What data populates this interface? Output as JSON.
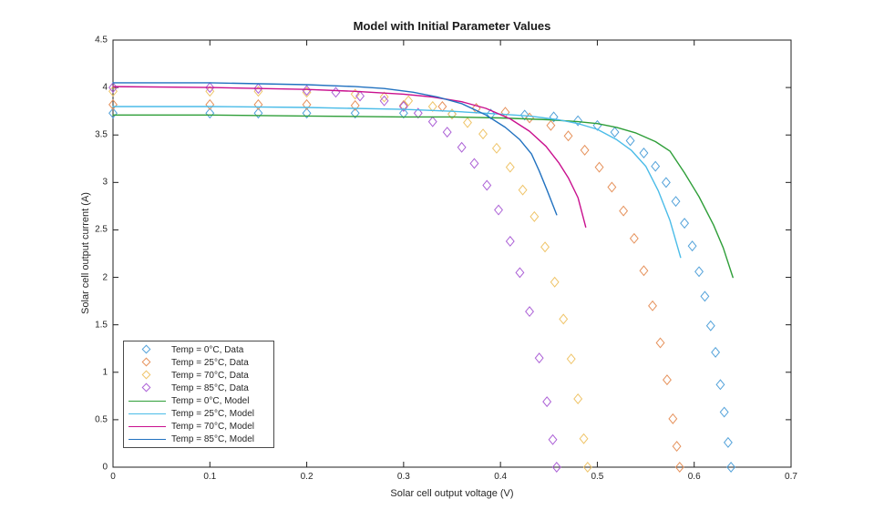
{
  "chart_data": {
    "type": "scatter",
    "title": "Model with Initial Parameter Values",
    "xlabel": "Solar cell output voltage (V)",
    "ylabel": "Solar cell output current (A)",
    "xlim": [
      0,
      0.7
    ],
    "ylim": [
      0,
      4.5
    ],
    "xticks": [
      0,
      0.1,
      0.2,
      0.3,
      0.4,
      0.5,
      0.6,
      0.7
    ],
    "xtick_labels": [
      "0",
      "0.1",
      "0.2",
      "0.3",
      "0.4",
      "0.5",
      "0.6",
      "0.7"
    ],
    "yticks": [
      0,
      0.5,
      1,
      1.5,
      2,
      2.5,
      3,
      3.5,
      4,
      4.5
    ],
    "ytick_labels": [
      "0",
      "0.5",
      "1",
      "1.5",
      "2",
      "2.5",
      "3",
      "3.5",
      "4",
      "4.5"
    ],
    "grid": false,
    "legend_position": "inside-lower-left",
    "axis_color": "#1f1f1f",
    "series": [
      {
        "id": "data-0c",
        "label": "Temp = 0°C, Data",
        "kind": "data",
        "marker": "diamond",
        "color": "#53A2DA",
        "points": [
          [
            0,
            3.73
          ],
          [
            0.1,
            3.73
          ],
          [
            0.15,
            3.73
          ],
          [
            0.2,
            3.73
          ],
          [
            0.25,
            3.73
          ],
          [
            0.3,
            3.73
          ],
          [
            0.35,
            3.72
          ],
          [
            0.39,
            3.72
          ],
          [
            0.425,
            3.71
          ],
          [
            0.455,
            3.69
          ],
          [
            0.48,
            3.65
          ],
          [
            0.5,
            3.6
          ],
          [
            0.518,
            3.53
          ],
          [
            0.534,
            3.44
          ],
          [
            0.548,
            3.31
          ],
          [
            0.56,
            3.17
          ],
          [
            0.571,
            3.0
          ],
          [
            0.581,
            2.8
          ],
          [
            0.59,
            2.57
          ],
          [
            0.598,
            2.33
          ],
          [
            0.605,
            2.06
          ],
          [
            0.611,
            1.8
          ],
          [
            0.617,
            1.49
          ],
          [
            0.622,
            1.21
          ],
          [
            0.627,
            0.87
          ],
          [
            0.631,
            0.58
          ],
          [
            0.635,
            0.26
          ],
          [
            0.638,
            0.0
          ]
        ]
      },
      {
        "id": "data-25c",
        "label": "Temp = 25°C, Data",
        "kind": "data",
        "marker": "diamond",
        "color": "#E6925C",
        "points": [
          [
            0,
            3.82
          ],
          [
            0.1,
            3.82
          ],
          [
            0.15,
            3.82
          ],
          [
            0.2,
            3.82
          ],
          [
            0.25,
            3.81
          ],
          [
            0.3,
            3.81
          ],
          [
            0.34,
            3.8
          ],
          [
            0.375,
            3.78
          ],
          [
            0.405,
            3.74
          ],
          [
            0.43,
            3.68
          ],
          [
            0.452,
            3.6
          ],
          [
            0.47,
            3.49
          ],
          [
            0.487,
            3.34
          ],
          [
            0.502,
            3.16
          ],
          [
            0.515,
            2.95
          ],
          [
            0.527,
            2.7
          ],
          [
            0.538,
            2.41
          ],
          [
            0.548,
            2.07
          ],
          [
            0.557,
            1.7
          ],
          [
            0.565,
            1.31
          ],
          [
            0.572,
            0.92
          ],
          [
            0.578,
            0.51
          ],
          [
            0.582,
            0.22
          ],
          [
            0.585,
            0.0
          ]
        ]
      },
      {
        "id": "data-70c",
        "label": "Temp = 70°C, Data",
        "kind": "data",
        "marker": "diamond",
        "color": "#EFC468",
        "points": [
          [
            0,
            3.96
          ],
          [
            0.1,
            3.96
          ],
          [
            0.15,
            3.96
          ],
          [
            0.2,
            3.95
          ],
          [
            0.25,
            3.93
          ],
          [
            0.28,
            3.9
          ],
          [
            0.305,
            3.86
          ],
          [
            0.33,
            3.8
          ],
          [
            0.35,
            3.72
          ],
          [
            0.366,
            3.63
          ],
          [
            0.382,
            3.51
          ],
          [
            0.396,
            3.36
          ],
          [
            0.41,
            3.16
          ],
          [
            0.423,
            2.92
          ],
          [
            0.435,
            2.64
          ],
          [
            0.446,
            2.32
          ],
          [
            0.456,
            1.95
          ],
          [
            0.465,
            1.56
          ],
          [
            0.473,
            1.14
          ],
          [
            0.48,
            0.72
          ],
          [
            0.486,
            0.3
          ],
          [
            0.49,
            0.0
          ]
        ]
      },
      {
        "id": "data-85c",
        "label": "Temp = 85°C, Data",
        "kind": "data",
        "marker": "diamond",
        "color": "#AC61D6",
        "points": [
          [
            0,
            4.0
          ],
          [
            0.1,
            4.0
          ],
          [
            0.15,
            3.99
          ],
          [
            0.2,
            3.97
          ],
          [
            0.23,
            3.95
          ],
          [
            0.255,
            3.91
          ],
          [
            0.28,
            3.86
          ],
          [
            0.3,
            3.8
          ],
          [
            0.315,
            3.73
          ],
          [
            0.33,
            3.64
          ],
          [
            0.345,
            3.53
          ],
          [
            0.36,
            3.37
          ],
          [
            0.373,
            3.2
          ],
          [
            0.386,
            2.97
          ],
          [
            0.398,
            2.71
          ],
          [
            0.41,
            2.38
          ],
          [
            0.42,
            2.05
          ],
          [
            0.43,
            1.64
          ],
          [
            0.44,
            1.15
          ],
          [
            0.448,
            0.69
          ],
          [
            0.454,
            0.29
          ],
          [
            0.458,
            0.0
          ]
        ]
      },
      {
        "id": "model-0c",
        "label": "Temp = 0°C, Model",
        "kind": "model",
        "marker": null,
        "color": "#2E9E38",
        "points": [
          [
            0,
            3.71
          ],
          [
            0.1,
            3.71
          ],
          [
            0.2,
            3.7
          ],
          [
            0.3,
            3.69
          ],
          [
            0.35,
            3.69
          ],
          [
            0.4,
            3.68
          ],
          [
            0.45,
            3.66
          ],
          [
            0.48,
            3.64
          ],
          [
            0.5,
            3.62
          ],
          [
            0.52,
            3.58
          ],
          [
            0.54,
            3.52
          ],
          [
            0.56,
            3.43
          ],
          [
            0.575,
            3.33
          ],
          [
            0.59,
            3.1
          ],
          [
            0.605,
            2.85
          ],
          [
            0.62,
            2.55
          ],
          [
            0.63,
            2.31
          ],
          [
            0.64,
            2.0
          ]
        ]
      },
      {
        "id": "model-25c",
        "label": "Temp = 25°C, Model",
        "kind": "model",
        "marker": null,
        "color": "#4BBCE8",
        "points": [
          [
            0,
            3.8
          ],
          [
            0.1,
            3.8
          ],
          [
            0.2,
            3.79
          ],
          [
            0.3,
            3.77
          ],
          [
            0.35,
            3.75
          ],
          [
            0.4,
            3.72
          ],
          [
            0.43,
            3.7
          ],
          [
            0.46,
            3.66
          ],
          [
            0.48,
            3.62
          ],
          [
            0.5,
            3.56
          ],
          [
            0.52,
            3.45
          ],
          [
            0.535,
            3.34
          ],
          [
            0.55,
            3.17
          ],
          [
            0.563,
            2.91
          ],
          [
            0.575,
            2.6
          ],
          [
            0.586,
            2.21
          ]
        ]
      },
      {
        "id": "model-70c",
        "label": "Temp = 70°C, Model",
        "kind": "model",
        "marker": null,
        "color": "#C9108E",
        "points": [
          [
            0,
            4.01
          ],
          [
            0.1,
            4.0
          ],
          [
            0.2,
            3.98
          ],
          [
            0.25,
            3.96
          ],
          [
            0.3,
            3.93
          ],
          [
            0.33,
            3.9
          ],
          [
            0.36,
            3.85
          ],
          [
            0.385,
            3.78
          ],
          [
            0.41,
            3.67
          ],
          [
            0.43,
            3.54
          ],
          [
            0.447,
            3.38
          ],
          [
            0.46,
            3.21
          ],
          [
            0.47,
            3.05
          ],
          [
            0.48,
            2.84
          ],
          [
            0.488,
            2.53
          ]
        ]
      },
      {
        "id": "model-85c",
        "label": "Temp = 85°C, Model",
        "kind": "model",
        "marker": null,
        "color": "#2272C0",
        "points": [
          [
            0,
            4.05
          ],
          [
            0.1,
            4.05
          ],
          [
            0.2,
            4.03
          ],
          [
            0.25,
            4.01
          ],
          [
            0.28,
            3.99
          ],
          [
            0.31,
            3.95
          ],
          [
            0.335,
            3.9
          ],
          [
            0.36,
            3.83
          ],
          [
            0.385,
            3.71
          ],
          [
            0.405,
            3.58
          ],
          [
            0.42,
            3.45
          ],
          [
            0.432,
            3.3
          ],
          [
            0.44,
            3.12
          ],
          [
            0.448,
            2.92
          ],
          [
            0.458,
            2.66
          ]
        ]
      }
    ]
  }
}
